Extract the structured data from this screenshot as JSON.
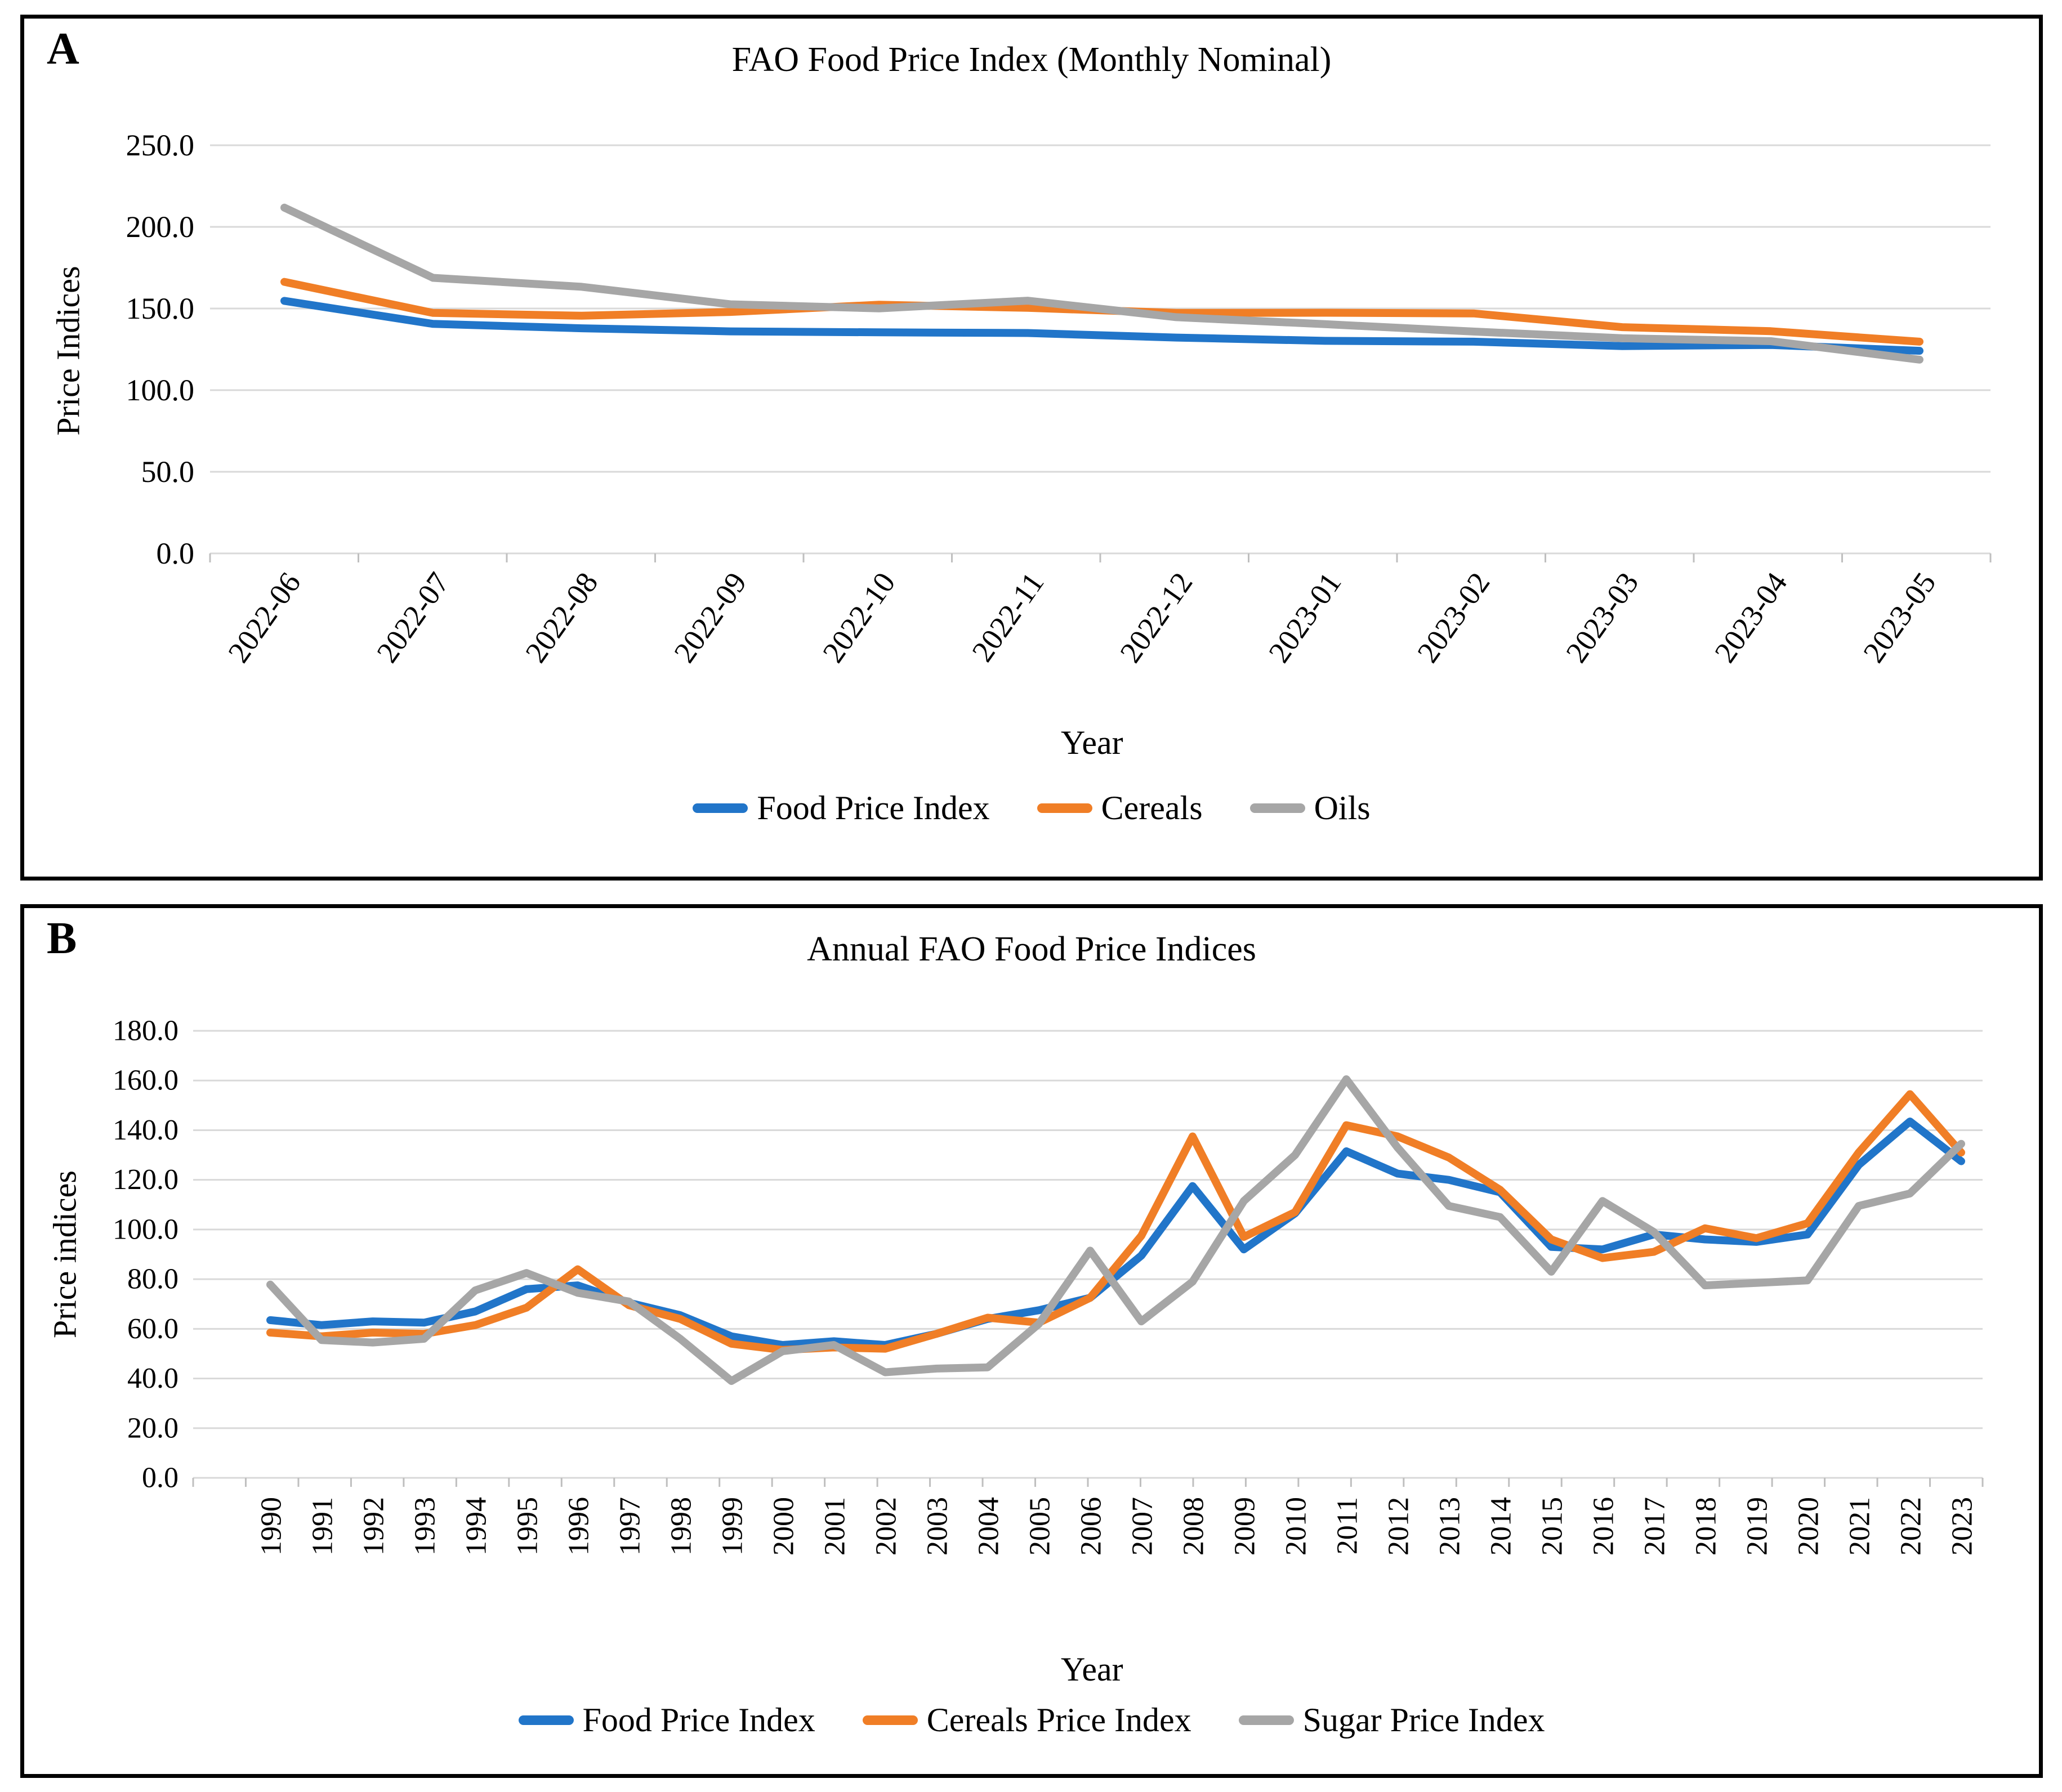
{
  "page": {
    "background": "#FFFFFF"
  },
  "panels": [
    {
      "label": "A"
    },
    {
      "label": "B"
    }
  ],
  "colors": {
    "blue": "#2175C9",
    "orange": "#F07E26",
    "gray": "#A6A6A6",
    "gridline": "#D9D9D9",
    "tick": "#BFBFBF"
  },
  "chart_data": [
    {
      "type": "line",
      "title": "FAO Food Price Index (Monthly Nominal)",
      "xlabel": "Year",
      "ylabel": "Price Indices",
      "ylim": [
        0,
        250
      ],
      "grid": true,
      "legend_position": "bottom",
      "yticks": [
        {
          "value": 0,
          "label": "0.0"
        },
        {
          "value": 50,
          "label": "50.0"
        },
        {
          "value": 100,
          "label": "100.0"
        },
        {
          "value": 150,
          "label": "150.0"
        },
        {
          "value": 200,
          "label": "200.0"
        },
        {
          "value": 250,
          "label": "250.0"
        }
      ],
      "categories": [
        "2022-06",
        "2022-07",
        "2022-08",
        "2022-09",
        "2022-10",
        "2022-11",
        "2022-12",
        "2023-01",
        "2023-02",
        "2023-03",
        "2023-04",
        "2023-05"
      ],
      "series": [
        {
          "name": "Food Price Index",
          "color": "#2175C9",
          "values": [
            154.7,
            140.6,
            137.9,
            136.0,
            135.4,
            135.0,
            132.2,
            130.2,
            129.7,
            127.0,
            127.7,
            124.1
          ]
        },
        {
          "name": "Cereals",
          "color": "#F07E26",
          "values": [
            166.3,
            147.3,
            145.6,
            147.9,
            152.3,
            150.4,
            147.3,
            147.4,
            147.0,
            138.6,
            136.1,
            129.7
          ]
        },
        {
          "name": "Oils",
          "color": "#A6A6A6",
          "values": [
            211.8,
            168.8,
            163.3,
            152.6,
            150.1,
            154.8,
            144.7,
            140.4,
            135.9,
            131.8,
            130.0,
            118.7
          ]
        }
      ]
    },
    {
      "type": "line",
      "title": "Annual FAO Food Price Indices",
      "xlabel": "Year",
      "ylabel": "Price indices",
      "ylim": [
        0,
        180
      ],
      "grid": true,
      "legend_position": "bottom",
      "yticks": [
        {
          "value": 0,
          "label": "0.0"
        },
        {
          "value": 20,
          "label": "20.0"
        },
        {
          "value": 40,
          "label": "40.0"
        },
        {
          "value": 60,
          "label": "60.0"
        },
        {
          "value": 80,
          "label": "80.0"
        },
        {
          "value": 100,
          "label": "100.0"
        },
        {
          "value": 120,
          "label": "120.0"
        },
        {
          "value": 140,
          "label": "140.0"
        },
        {
          "value": 160,
          "label": "160.0"
        },
        {
          "value": 180,
          "label": "180.0"
        }
      ],
      "categories": [
        "1990",
        "1991",
        "1992",
        "1993",
        "1994",
        "1995",
        "1996",
        "1997",
        "1998",
        "1999",
        "2000",
        "2001",
        "2002",
        "2003",
        "2004",
        "2005",
        "2006",
        "2007",
        "2008",
        "2009",
        "2010",
        "2011",
        "2012",
        "2013",
        "2014",
        "2015",
        "2016",
        "2017",
        "2018",
        "2019",
        "2020",
        "2021",
        "2022",
        "2023"
      ],
      "series": [
        {
          "name": "Food Price Index",
          "color": "#2175C9",
          "values": [
            63.5,
            61.5,
            63.0,
            62.5,
            67.0,
            76.0,
            77.5,
            70.5,
            65.5,
            57.0,
            53.5,
            55.0,
            53.5,
            58.0,
            64.0,
            67.5,
            72.5,
            89.5,
            117.5,
            92.0,
            106.5,
            131.5,
            122.5,
            120.0,
            115.0,
            93.0,
            92.0,
            98.0,
            96.0,
            95.0,
            98.0,
            126.0,
            143.5,
            127.5
          ]
        },
        {
          "name": "Cereals Price Index",
          "color": "#F07E26",
          "values": [
            58.5,
            57.0,
            58.5,
            58.0,
            61.5,
            68.5,
            84.0,
            69.5,
            64.0,
            54.0,
            51.5,
            52.5,
            52.0,
            58.0,
            64.5,
            62.5,
            72.5,
            97.5,
            137.5,
            97.0,
            107.0,
            142.0,
            137.5,
            129.0,
            116.0,
            96.0,
            88.5,
            91.0,
            100.5,
            96.5,
            102.5,
            131.0,
            154.5,
            131.0
          ]
        },
        {
          "name": "Sugar Price Index",
          "color": "#A6A6A6",
          "values": [
            77.8,
            55.5,
            54.5,
            56.0,
            75.5,
            82.5,
            74.5,
            71.0,
            56.0,
            39.0,
            51.0,
            53.5,
            42.5,
            44.0,
            44.5,
            62.0,
            91.5,
            63.0,
            79.0,
            111.5,
            130.0,
            160.5,
            133.0,
            109.5,
            105.0,
            83.0,
            111.5,
            99.0,
            77.5,
            78.5,
            79.5,
            109.5,
            114.5,
            134.5
          ]
        }
      ]
    }
  ]
}
